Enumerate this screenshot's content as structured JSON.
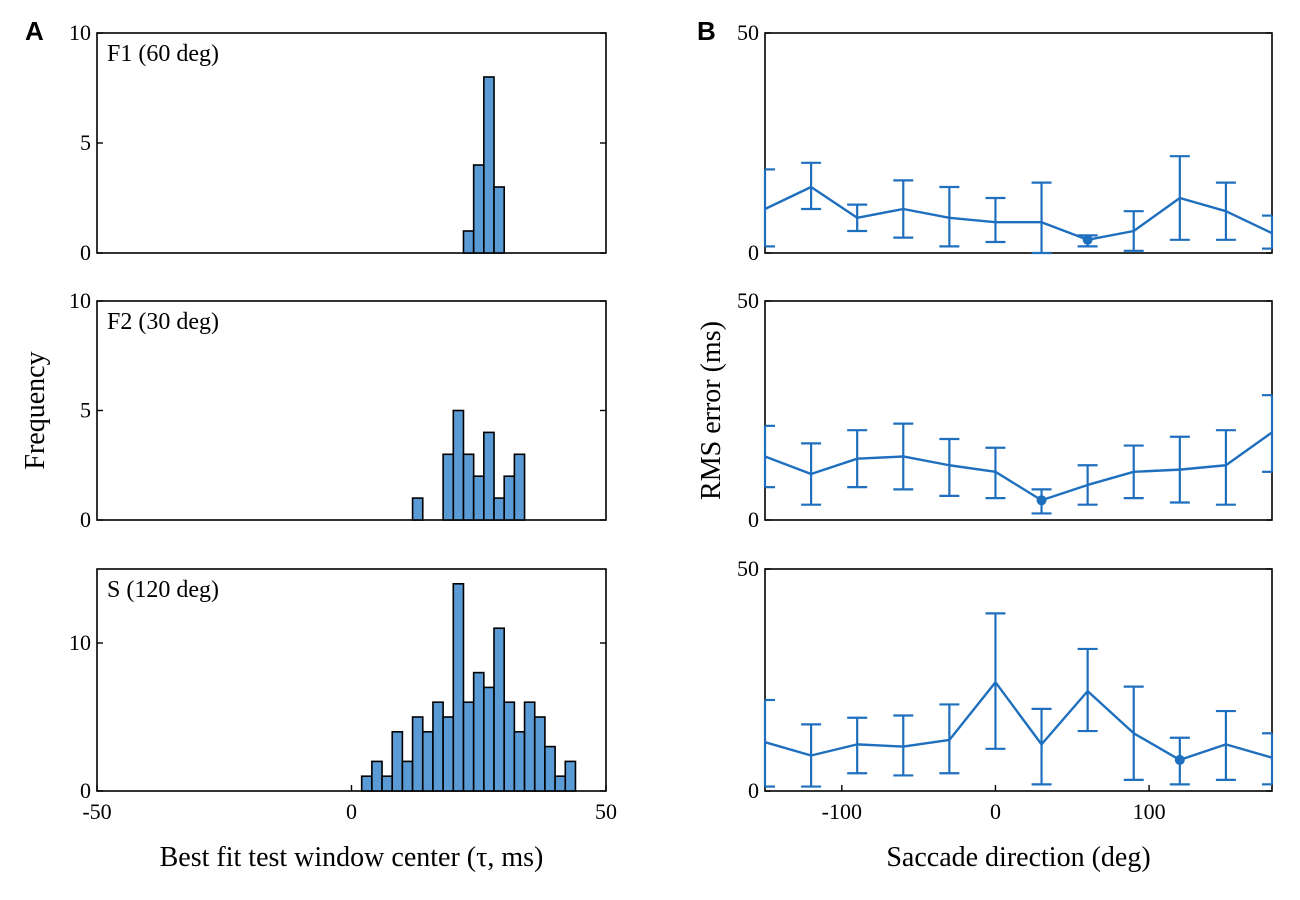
{
  "panel_labels": {
    "a": "A",
    "b": "B"
  },
  "colors": {
    "bar_fill": "#5b9bd5",
    "bar_stroke": "#000000",
    "line": "#1f6fbf",
    "axis": "#000000"
  },
  "chart_data": [
    {
      "id": "hist-f1",
      "type": "bar",
      "title": "F1 (60 deg)",
      "xlim": [
        -50,
        50
      ],
      "ylim": [
        0,
        10
      ],
      "xticks": [],
      "yticks": [
        0,
        5,
        10
      ],
      "bin_width": 2,
      "bins": [
        {
          "x": 23,
          "count": 1
        },
        {
          "x": 25,
          "count": 4
        },
        {
          "x": 27,
          "count": 8
        },
        {
          "x": 29,
          "count": 3
        }
      ]
    },
    {
      "id": "hist-f2",
      "type": "bar",
      "title": "F2 (30 deg)",
      "ylabel": "Frequency",
      "xlim": [
        -50,
        50
      ],
      "ylim": [
        0,
        10
      ],
      "xticks": [],
      "yticks": [
        0,
        5,
        10
      ],
      "bin_width": 2,
      "bins": [
        {
          "x": 13,
          "count": 1
        },
        {
          "x": 19,
          "count": 3
        },
        {
          "x": 21,
          "count": 5
        },
        {
          "x": 23,
          "count": 3
        },
        {
          "x": 25,
          "count": 2
        },
        {
          "x": 27,
          "count": 4
        },
        {
          "x": 29,
          "count": 1
        },
        {
          "x": 31,
          "count": 2
        },
        {
          "x": 33,
          "count": 3
        }
      ]
    },
    {
      "id": "hist-s",
      "type": "bar",
      "title": "S (120 deg)",
      "xlabel": "Best fit test window center (τ, ms)",
      "xlim": [
        -50,
        50
      ],
      "ylim": [
        0,
        15
      ],
      "xticks": [
        -50,
        0,
        50
      ],
      "yticks": [
        0,
        10
      ],
      "bin_width": 2,
      "bins": [
        {
          "x": 3,
          "count": 1
        },
        {
          "x": 5,
          "count": 2
        },
        {
          "x": 7,
          "count": 1
        },
        {
          "x": 9,
          "count": 4
        },
        {
          "x": 11,
          "count": 2
        },
        {
          "x": 13,
          "count": 5
        },
        {
          "x": 15,
          "count": 4
        },
        {
          "x": 17,
          "count": 6
        },
        {
          "x": 19,
          "count": 5
        },
        {
          "x": 21,
          "count": 14
        },
        {
          "x": 23,
          "count": 6
        },
        {
          "x": 25,
          "count": 8
        },
        {
          "x": 27,
          "count": 7
        },
        {
          "x": 29,
          "count": 11
        },
        {
          "x": 31,
          "count": 6
        },
        {
          "x": 33,
          "count": 4
        },
        {
          "x": 35,
          "count": 6
        },
        {
          "x": 37,
          "count": 5
        },
        {
          "x": 39,
          "count": 3
        },
        {
          "x": 41,
          "count": 1
        },
        {
          "x": 43,
          "count": 2
        }
      ]
    },
    {
      "id": "rms-top",
      "type": "line",
      "xlim": [
        -150,
        180
      ],
      "ylim": [
        0,
        50
      ],
      "xticks": [],
      "yticks": [
        0,
        50
      ],
      "x": [
        -150,
        -120,
        -90,
        -60,
        -30,
        0,
        30,
        60,
        90,
        120,
        150,
        180
      ],
      "y": [
        10,
        15,
        8,
        10,
        8,
        7,
        7,
        3,
        5,
        12.5,
        9.5,
        4.5
      ],
      "err_low": [
        1.5,
        10,
        5,
        3.5,
        1.5,
        2.5,
        0,
        1.5,
        0.5,
        3,
        3,
        1
      ],
      "err_high": [
        19,
        20.5,
        11,
        16.5,
        15,
        12.5,
        16,
        4,
        9.5,
        22,
        16,
        8.5
      ],
      "highlight_x": 60
    },
    {
      "id": "rms-middle",
      "type": "line",
      "ylabel": "RMS error (ms)",
      "xlim": [
        -150,
        180
      ],
      "ylim": [
        0,
        50
      ],
      "xticks": [],
      "yticks": [
        0,
        50
      ],
      "x": [
        -150,
        -120,
        -90,
        -60,
        -30,
        0,
        30,
        60,
        90,
        120,
        150,
        180
      ],
      "y": [
        14.5,
        10.5,
        14,
        14.5,
        12.5,
        11,
        4.5,
        8,
        11,
        11.5,
        12.5,
        20
      ],
      "err_low": [
        7.5,
        3.5,
        7.5,
        7,
        5.5,
        5,
        1.5,
        3.5,
        5,
        4,
        3.5,
        11
      ],
      "err_high": [
        21.5,
        17.5,
        20.5,
        22,
        18.5,
        16.5,
        7,
        12.5,
        17,
        19,
        20.5,
        28.5
      ],
      "highlight_x": 30
    },
    {
      "id": "rms-bottom",
      "type": "line",
      "xlabel": "Saccade direction (deg)",
      "xlim": [
        -150,
        180
      ],
      "ylim": [
        0,
        50
      ],
      "xticks": [
        -100,
        0,
        100
      ],
      "yticks": [
        0,
        50
      ],
      "x": [
        -150,
        -120,
        -90,
        -60,
        -30,
        0,
        30,
        60,
        90,
        120,
        150,
        180
      ],
      "y": [
        11,
        8,
        10.5,
        10,
        11.5,
        24.5,
        10.5,
        22.5,
        13,
        7,
        10.5,
        7.5
      ],
      "err_low": [
        1,
        1,
        4,
        3.5,
        4,
        9.5,
        1.5,
        13.5,
        2.5,
        1.5,
        2.5,
        1.5
      ],
      "err_high": [
        20.5,
        15,
        16.5,
        17,
        19.5,
        40,
        18.5,
        32,
        23.5,
        12,
        18,
        13
      ],
      "highlight_x": 120
    }
  ]
}
